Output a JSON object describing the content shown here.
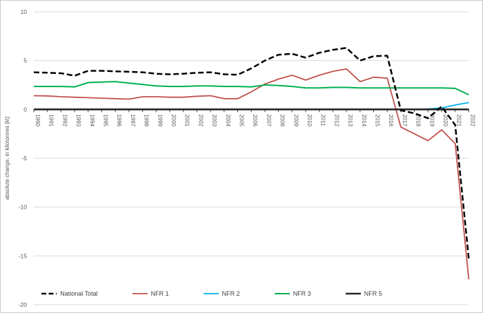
{
  "chart_data": {
    "type": "line",
    "title": "",
    "xlabel": "",
    "ylabel": "absolute change, in kilotonnes [kt]",
    "ylim": [
      -20,
      10
    ],
    "ytick_step": 5,
    "yticks": [
      10,
      5,
      0,
      -5,
      -10,
      -15,
      -20
    ],
    "grid": true,
    "legend_position": "bottom",
    "x": [
      1990,
      1991,
      1992,
      1993,
      1994,
      1995,
      1996,
      1997,
      1998,
      1999,
      2000,
      2001,
      2002,
      2003,
      2004,
      2005,
      2006,
      2007,
      2008,
      2009,
      2010,
      2011,
      2012,
      2013,
      2014,
      2015,
      2016,
      2017,
      2018,
      2019,
      2020,
      2021,
      2022
    ],
    "series": [
      {
        "name": "National Total",
        "color": "#000000",
        "style": "dashed",
        "width": 2.5,
        "values": [
          3.8,
          3.75,
          3.7,
          3.45,
          3.95,
          3.95,
          3.9,
          3.85,
          3.8,
          3.65,
          3.6,
          3.65,
          3.75,
          3.8,
          3.6,
          3.55,
          4.2,
          5.0,
          5.6,
          5.7,
          5.3,
          5.8,
          6.1,
          6.3,
          5.0,
          5.45,
          5.5,
          -0.1,
          -0.4,
          -0.9,
          0.3,
          -1.6,
          -15.3
        ]
      },
      {
        "name": "NFR 1",
        "color": "#C0504D",
        "style": "solid",
        "width": 1.8,
        "values": [
          1.4,
          1.38,
          1.3,
          1.25,
          1.2,
          1.15,
          1.1,
          1.05,
          1.3,
          1.3,
          1.25,
          1.25,
          1.35,
          1.4,
          1.1,
          1.1,
          1.8,
          2.6,
          3.1,
          3.5,
          3.0,
          3.5,
          3.9,
          4.15,
          2.85,
          3.3,
          3.2,
          -1.8,
          -2.5,
          -3.2,
          -2.1,
          -3.5,
          -17.4
        ]
      },
      {
        "name": "NFR 2",
        "color": "#00B0F0",
        "style": "solid",
        "width": 1.8,
        "values": [
          0,
          0,
          0,
          0,
          0,
          0,
          0,
          0,
          0,
          0,
          0,
          0,
          0,
          0,
          0,
          0,
          0,
          0,
          0,
          0,
          0,
          0,
          0,
          0,
          0,
          0,
          0,
          0,
          0,
          0.05,
          0.15,
          0.45,
          0.7
        ]
      },
      {
        "name": "NFR 3",
        "color": "#00B050",
        "style": "solid",
        "width": 2.0,
        "values": [
          2.35,
          2.35,
          2.35,
          2.3,
          2.75,
          2.8,
          2.85,
          2.7,
          2.55,
          2.4,
          2.35,
          2.35,
          2.4,
          2.4,
          2.35,
          2.35,
          2.3,
          2.5,
          2.45,
          2.35,
          2.2,
          2.2,
          2.25,
          2.25,
          2.2,
          2.2,
          2.2,
          2.2,
          2.2,
          2.2,
          2.2,
          2.15,
          1.5
        ]
      },
      {
        "name": "NFR 5",
        "color": "#262626",
        "style": "solid",
        "width": 2.6,
        "values": [
          0,
          0,
          0,
          0,
          0,
          0,
          0,
          0,
          0,
          0,
          0,
          0,
          0,
          0,
          0,
          0,
          0,
          0,
          0,
          0,
          0,
          0,
          0,
          0,
          0,
          0,
          0,
          0,
          0,
          0,
          0,
          0,
          0
        ]
      }
    ]
  },
  "style": {
    "grid_color": "#D9D9D9",
    "axis_color": "#404040",
    "tick_label_color": "#595959",
    "legend_text_color": "#404040",
    "frame_border_color": "#C9C9C9"
  }
}
